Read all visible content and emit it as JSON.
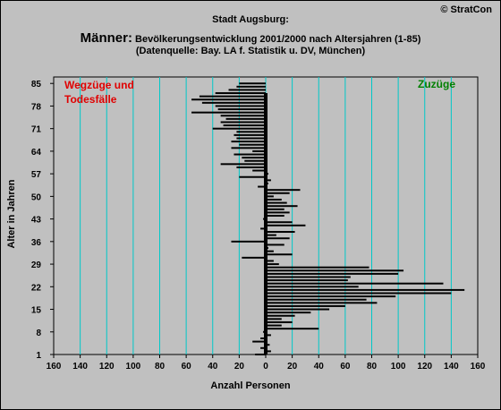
{
  "header": {
    "title_line1": "Stadt Augsburg:",
    "title_big": "Männer:",
    "title_rest": " Bevölkerungsentwicklung 2001/2000 nach Altersjahren (1-85)",
    "title_line3": "(Datenquelle: Bay. LA f. Statistik u. DV, München)",
    "copyright": "© StratCon"
  },
  "chart_data": {
    "type": "bar",
    "orientation": "horizontal",
    "xlabel": "Anzahl Personen",
    "ylabel": "Alter in Jahren",
    "xlim": [
      -160,
      160
    ],
    "ylim": [
      1,
      87
    ],
    "x_ticks": [
      "160",
      "140",
      "120",
      "100",
      "80",
      "60",
      "40",
      "20",
      "0",
      "20",
      "40",
      "60",
      "80",
      "100",
      "120",
      "140",
      "160"
    ],
    "y_ticks": [
      "85",
      "78",
      "71",
      "64",
      "57",
      "50",
      "43",
      "36",
      "29",
      "22",
      "15",
      "8",
      "1"
    ],
    "grid": true,
    "annotations": {
      "left": "Wegzüge und Todesfälle",
      "right": "Zuzüge"
    },
    "colors": {
      "bars": "#000000",
      "grid": "#00c8c8",
      "background": "#c0c0c0",
      "left_label": "#e00000",
      "right_label": "#008000"
    },
    "ages": [
      1,
      2,
      3,
      4,
      5,
      6,
      7,
      8,
      9,
      10,
      11,
      12,
      13,
      14,
      15,
      16,
      17,
      18,
      19,
      20,
      21,
      22,
      23,
      24,
      25,
      26,
      27,
      28,
      29,
      30,
      31,
      32,
      33,
      34,
      35,
      36,
      37,
      38,
      39,
      40,
      41,
      42,
      43,
      44,
      45,
      46,
      47,
      48,
      49,
      50,
      51,
      52,
      53,
      54,
      55,
      56,
      57,
      58,
      59,
      60,
      61,
      62,
      63,
      64,
      65,
      66,
      67,
      68,
      69,
      70,
      71,
      72,
      73,
      74,
      75,
      76,
      77,
      78,
      79,
      80,
      81,
      82,
      83,
      84,
      85
    ],
    "values": [
      -8,
      4,
      -4,
      3,
      -10,
      -4,
      4,
      -2,
      40,
      12,
      20,
      12,
      22,
      34,
      48,
      60,
      84,
      76,
      98,
      140,
      150,
      70,
      134,
      62,
      64,
      100,
      104,
      78,
      10,
      6,
      -18,
      20,
      6,
      2,
      14,
      -26,
      18,
      8,
      22,
      -4,
      30,
      20,
      -2,
      14,
      18,
      14,
      24,
      16,
      12,
      6,
      18,
      26,
      -6,
      2,
      4,
      -20,
      2,
      -10,
      -22,
      -34,
      -16,
      -18,
      -24,
      -10,
      -26,
      -20,
      -26,
      -22,
      -24,
      -22,
      -40,
      -32,
      -34,
      -30,
      -34,
      -56,
      -36,
      -38,
      -48,
      -56,
      -50,
      -38,
      -28,
      -22,
      -20
    ]
  }
}
